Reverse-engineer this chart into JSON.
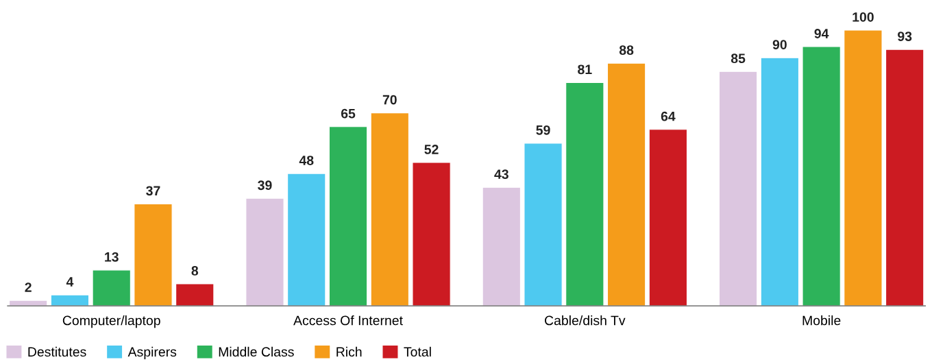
{
  "chart_data": {
    "type": "bar",
    "categories": [
      "Computer/laptop",
      "Access Of Internet",
      "Cable/dish Tv",
      "Mobile"
    ],
    "series": [
      {
        "name": "Destitutes",
        "color": "#dcc6e0",
        "values": [
          2,
          39,
          43,
          85
        ]
      },
      {
        "name": "Aspirers",
        "color": "#4ec9f0",
        "values": [
          4,
          48,
          59,
          90
        ]
      },
      {
        "name": "Middle Class",
        "color": "#2db35a",
        "values": [
          13,
          65,
          81,
          94
        ]
      },
      {
        "name": "Rich",
        "color": "#f59c1a",
        "values": [
          37,
          70,
          88,
          100
        ]
      },
      {
        "name": "Total",
        "color": "#cc1b22",
        "values": [
          8,
          52,
          64,
          93
        ]
      }
    ],
    "data_labels": true,
    "legend": "bottom left",
    "grid": false,
    "tick_labels": "x"
  }
}
